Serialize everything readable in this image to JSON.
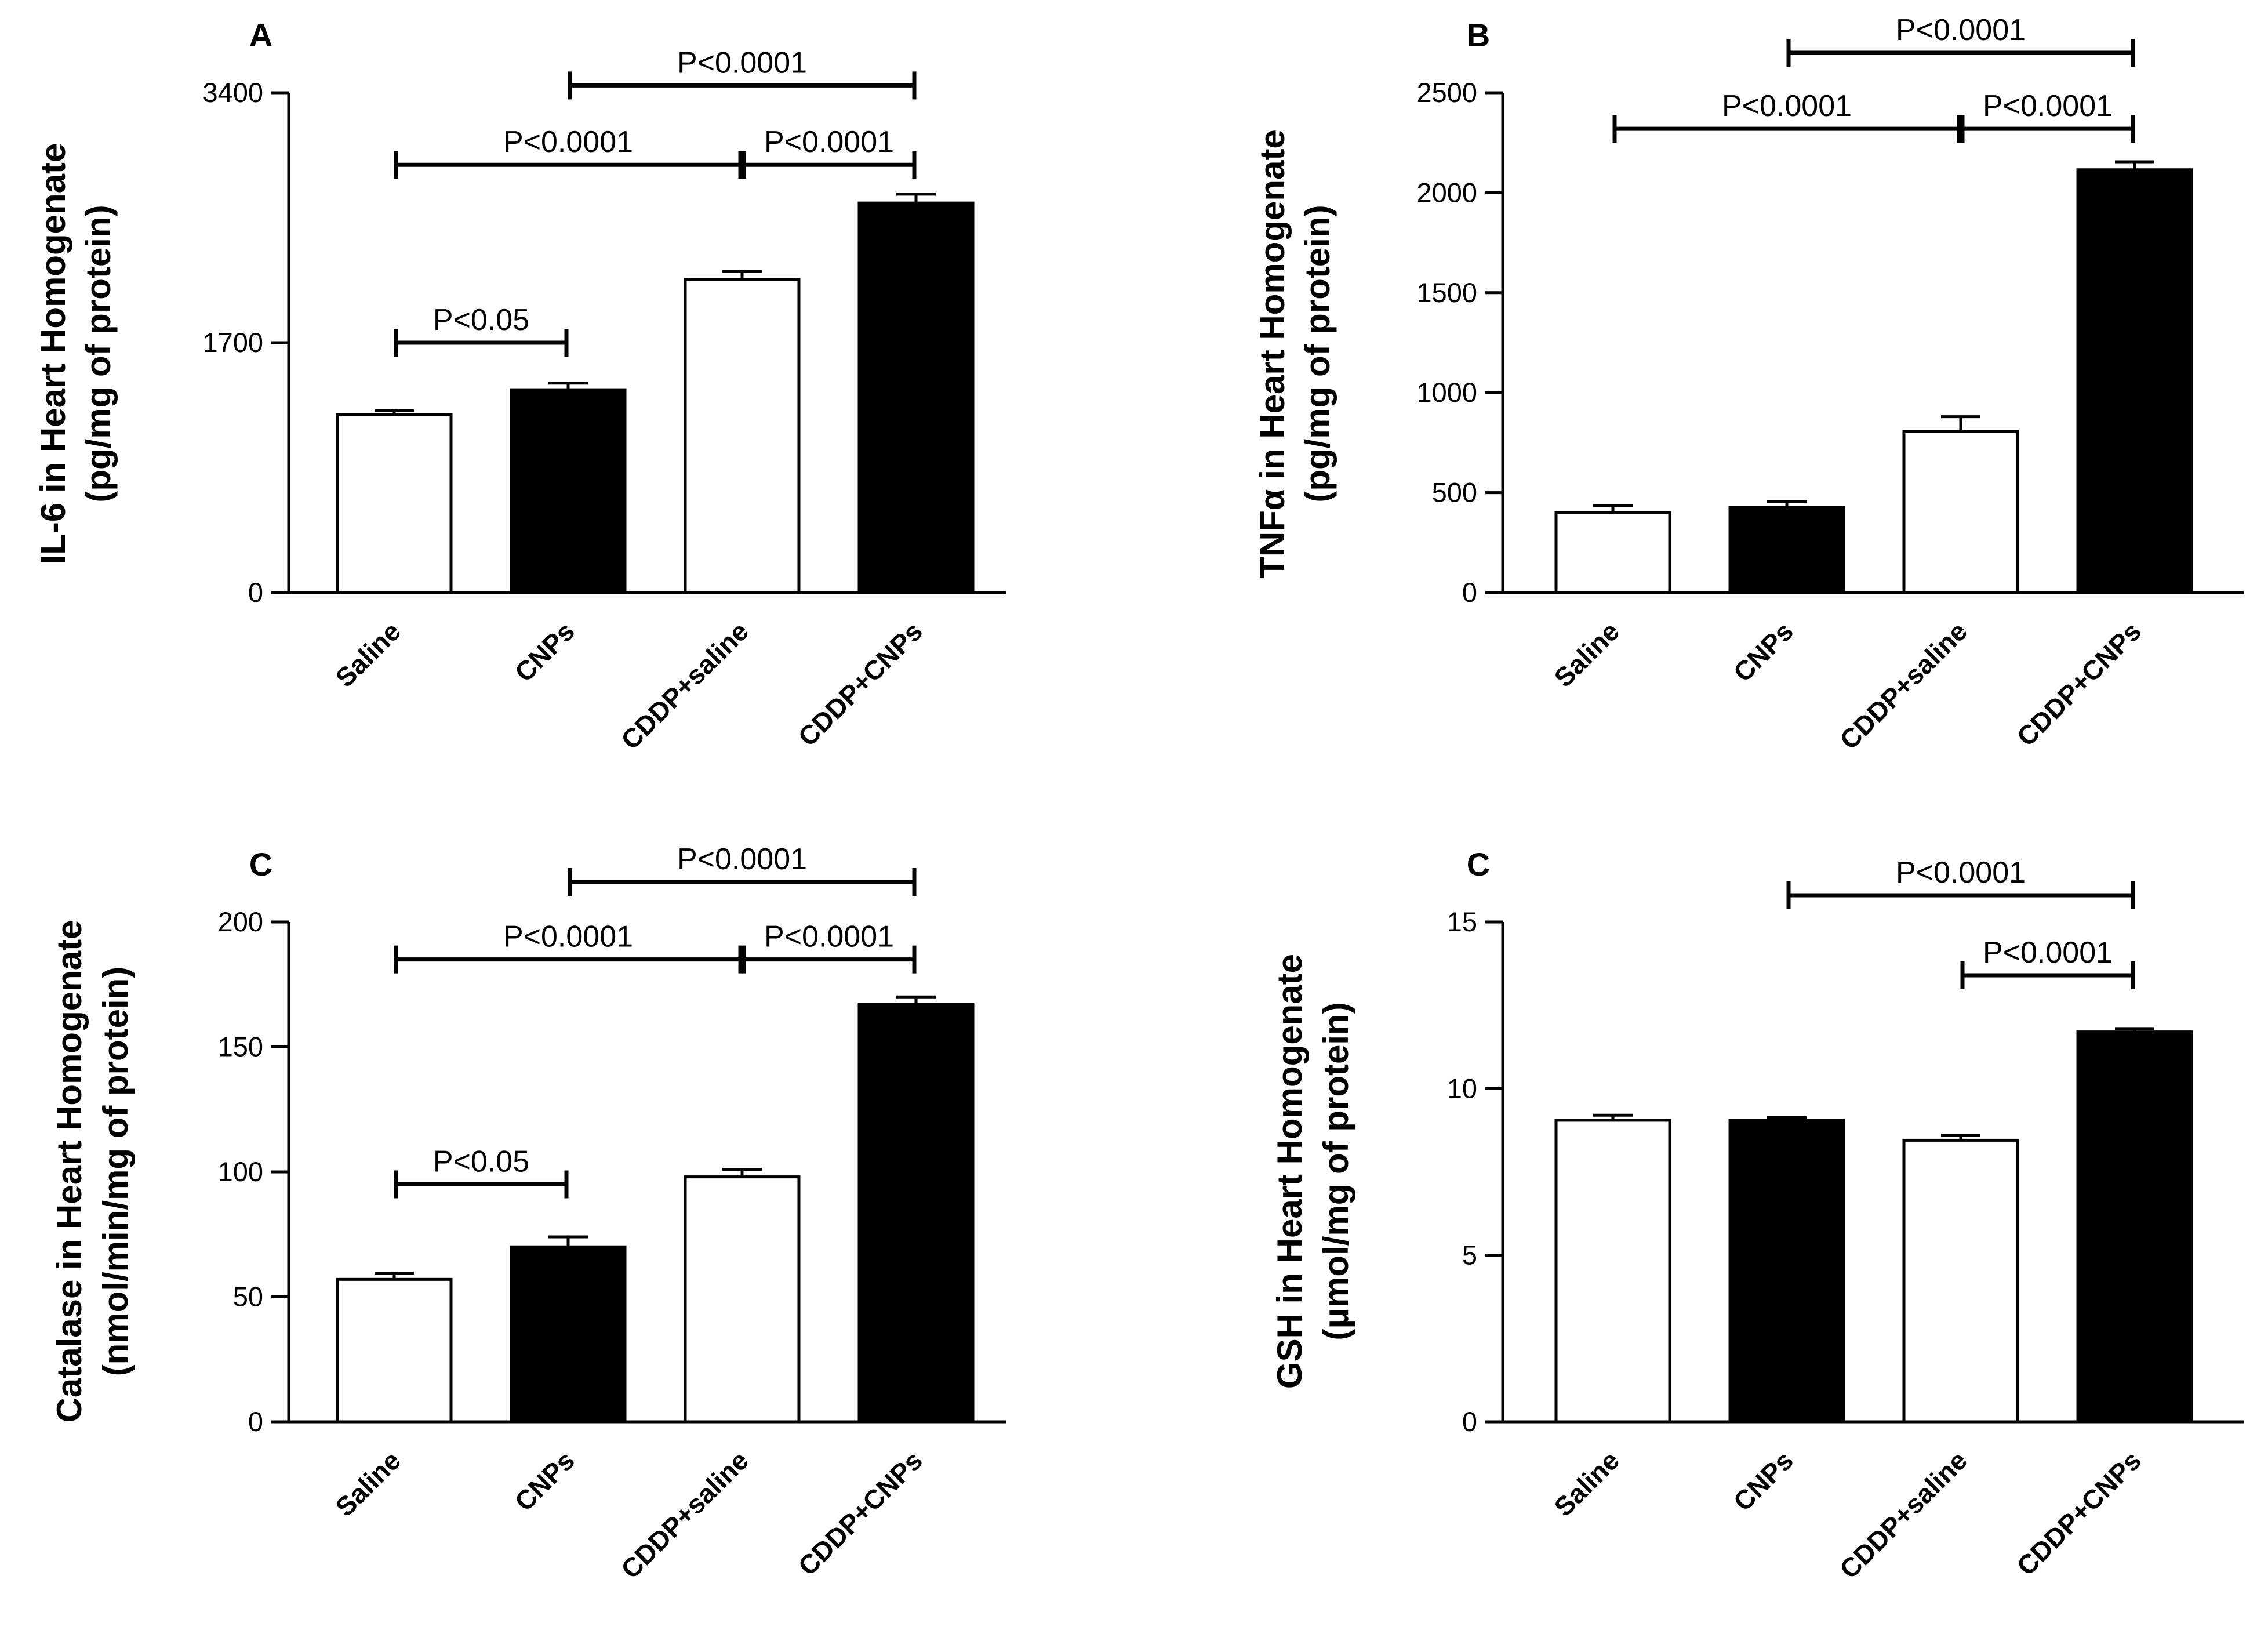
{
  "colors": {
    "open_bar": "#ffffff",
    "filled_bar": "#000000",
    "stroke": "#000000"
  },
  "chart_data": [
    {
      "type": "bar",
      "panel_label": "A",
      "ylabel_lines": [
        "IL-6 in Heart Homogenate",
        "(pg/mg of protein)"
      ],
      "ylim": [
        0,
        3400
      ],
      "yticks": [
        0,
        1700,
        3400
      ],
      "categories": [
        "Saline",
        "CNPs",
        "CDDP+saline",
        "CDDP+CNPs"
      ],
      "fills": [
        "open",
        "filled",
        "open",
        "filled"
      ],
      "values": [
        1210,
        1380,
        2130,
        2650
      ],
      "errors": [
        30,
        45,
        55,
        60
      ],
      "comparisons": [
        {
          "from": 0,
          "to": 1,
          "label": "P<0.05",
          "y": 1700
        },
        {
          "from": 0,
          "to": 2,
          "label": "P<0.0001",
          "y": 2910
        },
        {
          "from": 2,
          "to": 3,
          "label": "P<0.0001",
          "y": 2910
        },
        {
          "from": 1,
          "to": 3,
          "label": "P<0.0001",
          "y": 3450
        }
      ]
    },
    {
      "type": "bar",
      "panel_label": "B",
      "ylabel_lines": [
        "TNFα in Heart Homogenate",
        "(pg/mg of protein)"
      ],
      "ylim": [
        0,
        2500
      ],
      "yticks": [
        0,
        500,
        1000,
        1500,
        2000,
        2500
      ],
      "categories": [
        "Saline",
        "CNPs",
        "CDDP+saline",
        "CDDP+CNPs"
      ],
      "fills": [
        "open",
        "filled",
        "open",
        "filled"
      ],
      "values": [
        400,
        425,
        805,
        2115
      ],
      "errors": [
        35,
        30,
        75,
        40
      ],
      "comparisons": [
        {
          "from": 0,
          "to": 2,
          "label": "P<0.0001",
          "y": 2320
        },
        {
          "from": 2,
          "to": 3,
          "label": "P<0.0001",
          "y": 2320
        },
        {
          "from": 1,
          "to": 3,
          "label": "P<0.0001",
          "y": 2700
        }
      ]
    },
    {
      "type": "bar",
      "panel_label": "C",
      "ylabel_lines": [
        "Catalase in Heart Homogenate",
        "(nmol/min/mg of protein)"
      ],
      "ylim": [
        0,
        200
      ],
      "yticks": [
        0,
        50,
        100,
        150,
        200
      ],
      "categories": [
        "Saline",
        "CNPs",
        "CDDP+saline",
        "CDDP+CNPs"
      ],
      "fills": [
        "open",
        "filled",
        "open",
        "filled"
      ],
      "values": [
        57,
        70,
        98,
        167
      ],
      "errors": [
        2.5,
        4,
        3,
        3
      ],
      "comparisons": [
        {
          "from": 0,
          "to": 1,
          "label": "P<0.05",
          "y": 95
        },
        {
          "from": 0,
          "to": 2,
          "label": "P<0.0001",
          "y": 185
        },
        {
          "from": 2,
          "to": 3,
          "label": "P<0.0001",
          "y": 185
        },
        {
          "from": 1,
          "to": 3,
          "label": "P<0.0001",
          "y": 216
        }
      ]
    },
    {
      "type": "bar",
      "panel_label": "C",
      "ylabel_lines": [
        "GSH in Heart Homogenate",
        "(μmol/mg of protein)"
      ],
      "ylim": [
        0,
        15
      ],
      "yticks": [
        0,
        5,
        10,
        15
      ],
      "categories": [
        "Saline",
        "CNPs",
        "CDDP+saline",
        "CDDP+CNPs"
      ],
      "fills": [
        "open",
        "filled",
        "open",
        "filled"
      ],
      "values": [
        9.05,
        9.05,
        8.45,
        11.7
      ],
      "errors": [
        0.15,
        0.08,
        0.15,
        0.1
      ],
      "comparisons": [
        {
          "from": 2,
          "to": 3,
          "label": "P<0.0001",
          "y": 13.4
        },
        {
          "from": 1,
          "to": 3,
          "label": "P<0.0001",
          "y": 15.8
        }
      ]
    }
  ]
}
